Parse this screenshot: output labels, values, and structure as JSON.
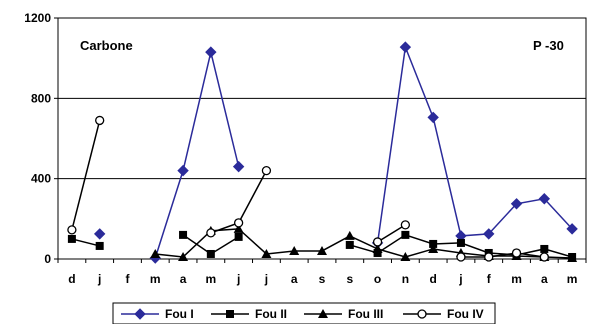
{
  "chart_data": {
    "type": "line",
    "categories": [
      "d",
      "j",
      "f",
      "m",
      "a",
      "m",
      "j",
      "j",
      "a",
      "s",
      "s",
      "o",
      "n",
      "d",
      "j",
      "f",
      "m",
      "a",
      "m"
    ],
    "ylim": [
      0,
      1200
    ],
    "yticks": [
      "0",
      "400",
      "800",
      "1200"
    ],
    "grid": true,
    "legend_position": "bottom",
    "annotations": [
      "Carbone",
      "P -30"
    ],
    "series": [
      {
        "name": "Fou I",
        "marker": "diamond",
        "color": "#2b2b9a",
        "values": [
          null,
          125,
          null,
          5,
          440,
          1030,
          460,
          null,
          null,
          null,
          null,
          80,
          1055,
          705,
          115,
          125,
          275,
          300,
          150
        ]
      },
      {
        "name": "Fou II",
        "marker": "square",
        "color": "#000000",
        "values": [
          100,
          65,
          null,
          null,
          120,
          25,
          110,
          null,
          null,
          null,
          70,
          30,
          120,
          75,
          80,
          30,
          20,
          50,
          10
        ]
      },
      {
        "name": "Fou III",
        "marker": "triangle",
        "color": "#000000",
        "values": [
          null,
          null,
          null,
          25,
          10,
          140,
          150,
          25,
          40,
          40,
          115,
          50,
          10,
          50,
          30,
          15,
          15,
          10,
          5
        ]
      },
      {
        "name": "Fou IV",
        "marker": "circle-open",
        "color": "#000000",
        "values": [
          145,
          690,
          null,
          null,
          null,
          130,
          180,
          440,
          null,
          null,
          null,
          85,
          170,
          null,
          10,
          10,
          30,
          10,
          null
        ]
      }
    ]
  }
}
